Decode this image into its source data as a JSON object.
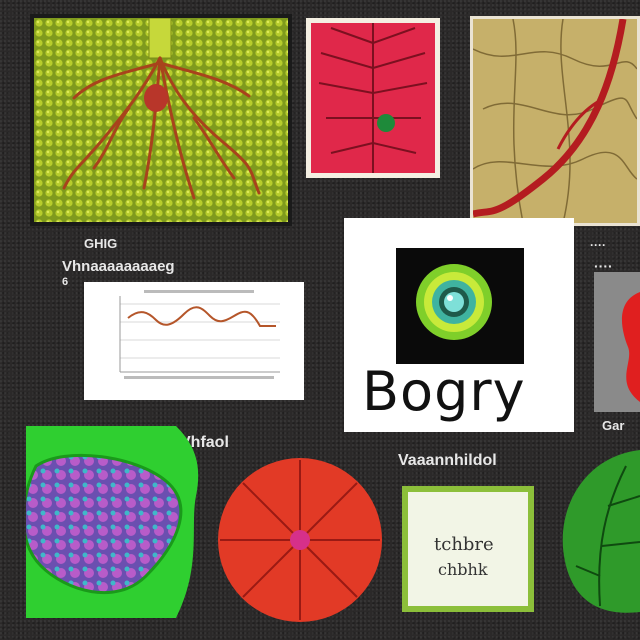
{
  "labels": {
    "left_small": "GHIG",
    "left_main": "Vhnaaaaaaaaeg",
    "left_tiny": "6",
    "right_small": "····",
    "right_main": "····",
    "right_bottom": "Gar",
    "middle": "Vhfaol",
    "center": "Vaaannhildol"
  },
  "logo_card": {
    "title": "Bogry"
  },
  "note_card": {
    "line1": "tchbre",
    "line2": "chbhk"
  },
  "colors": {
    "background": "#2b2929",
    "leaf_green": "#9bbc2a",
    "vein_red": "#d4201c",
    "petal_red": "#e23a26",
    "cell_green": "#35c92e",
    "cell_purple": "#8a4fc9"
  }
}
